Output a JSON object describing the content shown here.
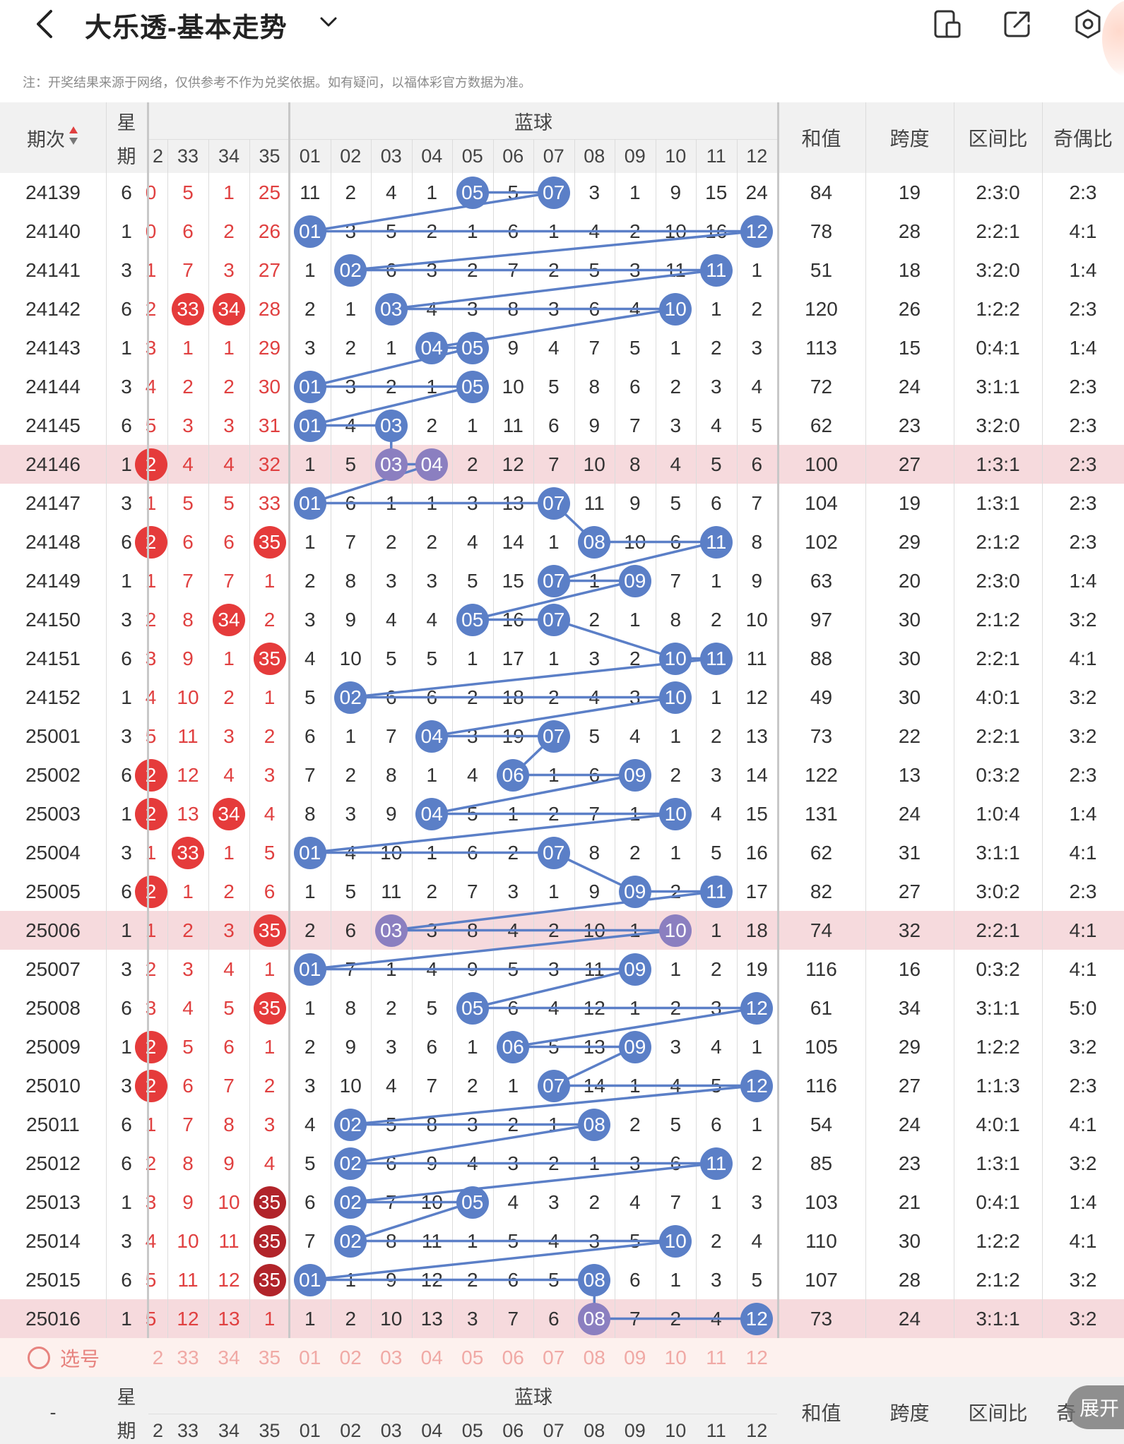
{
  "header": {
    "title": "大乐透-基本走势",
    "icons": [
      "back-icon",
      "chevron-down-icon",
      "device-icon",
      "share-icon",
      "settings-icon"
    ]
  },
  "note": "注：开奖结果来源于网络，仅供参考不作为兑奖依据。如有疑问，以福体彩官方数据为准。",
  "columns": {
    "period": "期次",
    "week": "星期",
    "blue_group": "蓝球",
    "front_visible": [
      "2",
      "33",
      "34",
      "35"
    ],
    "blue": [
      "01",
      "02",
      "03",
      "04",
      "05",
      "06",
      "07",
      "08",
      "09",
      "10",
      "11",
      "12"
    ],
    "sum": "和值",
    "span": "跨度",
    "zone": "区间比",
    "oddeven": "奇偶比"
  },
  "colors": {
    "blue_ball": "#5b7fc7",
    "purple_ball": "#8b7fc0",
    "red_ball": "#e53b3b",
    "dark_red_ball": "#b1242a",
    "highlight_row": "#f6dadd",
    "red_text": "#e04040"
  },
  "rows": [
    {
      "period": "24139",
      "week": "6",
      "front": [
        "0",
        "5",
        "1",
        "25"
      ],
      "front_balls": [],
      "blue": [
        "11",
        "2",
        "4",
        "1",
        "05",
        "5",
        "07",
        "3",
        "1",
        "9",
        "15",
        "24"
      ],
      "hits": [
        5,
        7
      ],
      "sum": "84",
      "span": "19",
      "zone": "2:3:0",
      "oe": "2:3"
    },
    {
      "period": "24140",
      "week": "1",
      "front": [
        "0",
        "6",
        "2",
        "26"
      ],
      "front_balls": [],
      "blue": [
        "01",
        "3",
        "5",
        "2",
        "1",
        "6",
        "1",
        "4",
        "2",
        "10",
        "16",
        "12"
      ],
      "hits": [
        1,
        12
      ],
      "sum": "78",
      "span": "28",
      "zone": "2:2:1",
      "oe": "4:1"
    },
    {
      "period": "24141",
      "week": "3",
      "front": [
        "1",
        "7",
        "3",
        "27"
      ],
      "front_balls": [],
      "blue": [
        "1",
        "02",
        "6",
        "3",
        "2",
        "7",
        "2",
        "5",
        "3",
        "11",
        "11",
        "1"
      ],
      "hits": [
        2,
        11
      ],
      "sum": "51",
      "span": "18",
      "zone": "3:2:0",
      "oe": "1:4"
    },
    {
      "period": "24142",
      "week": "6",
      "front": [
        "2",
        "33",
        "34",
        "28"
      ],
      "front_balls": [
        1,
        2
      ],
      "blue": [
        "2",
        "1",
        "03",
        "4",
        "3",
        "8",
        "3",
        "6",
        "4",
        "10",
        "1",
        "2"
      ],
      "hits": [
        3,
        10
      ],
      "sum": "120",
      "span": "26",
      "zone": "1:2:2",
      "oe": "2:3"
    },
    {
      "period": "24143",
      "week": "1",
      "front": [
        "3",
        "1",
        "1",
        "29"
      ],
      "front_balls": [],
      "blue": [
        "3",
        "2",
        "1",
        "04",
        "05",
        "9",
        "4",
        "7",
        "5",
        "1",
        "2",
        "3"
      ],
      "hits": [
        4,
        5
      ],
      "sum": "113",
      "span": "15",
      "zone": "0:4:1",
      "oe": "1:4"
    },
    {
      "period": "24144",
      "week": "3",
      "front": [
        "4",
        "2",
        "2",
        "30"
      ],
      "front_balls": [],
      "blue": [
        "01",
        "3",
        "2",
        "1",
        "05",
        "10",
        "5",
        "8",
        "6",
        "2",
        "3",
        "4"
      ],
      "hits": [
        1,
        5
      ],
      "sum": "72",
      "span": "24",
      "zone": "3:1:1",
      "oe": "2:3"
    },
    {
      "period": "24145",
      "week": "6",
      "front": [
        "5",
        "3",
        "3",
        "31"
      ],
      "front_balls": [],
      "blue": [
        "01",
        "4",
        "03",
        "2",
        "1",
        "11",
        "6",
        "9",
        "7",
        "3",
        "4",
        "5"
      ],
      "hits": [
        1,
        3
      ],
      "sum": "62",
      "span": "23",
      "zone": "3:2:0",
      "oe": "2:3"
    },
    {
      "period": "24146",
      "week": "1",
      "front": [
        "2",
        "4",
        "4",
        "32"
      ],
      "front_balls": [
        0
      ],
      "blue": [
        "1",
        "5",
        "03",
        "04",
        "2",
        "12",
        "7",
        "10",
        "8",
        "4",
        "5",
        "6"
      ],
      "hits": [
        3,
        4
      ],
      "sum": "100",
      "span": "27",
      "zone": "1:3:1",
      "oe": "2:3",
      "highlight": true
    },
    {
      "period": "24147",
      "week": "3",
      "front": [
        "1",
        "5",
        "5",
        "33"
      ],
      "front_balls": [],
      "blue": [
        "01",
        "6",
        "1",
        "1",
        "3",
        "13",
        "07",
        "11",
        "9",
        "5",
        "6",
        "7"
      ],
      "hits": [
        1,
        7
      ],
      "sum": "104",
      "span": "19",
      "zone": "1:3:1",
      "oe": "2:3"
    },
    {
      "period": "24148",
      "week": "6",
      "front": [
        "2",
        "6",
        "6",
        "35"
      ],
      "front_balls": [
        0,
        3
      ],
      "blue": [
        "1",
        "7",
        "2",
        "2",
        "4",
        "14",
        "1",
        "08",
        "10",
        "6",
        "11",
        "8"
      ],
      "hits": [
        8,
        11
      ],
      "sum": "102",
      "span": "29",
      "zone": "2:1:2",
      "oe": "2:3"
    },
    {
      "period": "24149",
      "week": "1",
      "front": [
        "1",
        "7",
        "7",
        "1"
      ],
      "front_balls": [],
      "blue": [
        "2",
        "8",
        "3",
        "3",
        "5",
        "15",
        "07",
        "1",
        "09",
        "7",
        "1",
        "9"
      ],
      "hits": [
        7,
        9
      ],
      "sum": "63",
      "span": "20",
      "zone": "2:3:0",
      "oe": "1:4"
    },
    {
      "period": "24150",
      "week": "3",
      "front": [
        "2",
        "8",
        "34",
        "2"
      ],
      "front_balls": [
        2
      ],
      "blue": [
        "3",
        "9",
        "4",
        "4",
        "05",
        "16",
        "07",
        "2",
        "1",
        "8",
        "2",
        "10"
      ],
      "hits": [
        5,
        7
      ],
      "sum": "97",
      "span": "30",
      "zone": "2:1:2",
      "oe": "3:2"
    },
    {
      "period": "24151",
      "week": "6",
      "front": [
        "3",
        "9",
        "1",
        "35"
      ],
      "front_balls": [
        3
      ],
      "blue": [
        "4",
        "10",
        "5",
        "5",
        "1",
        "17",
        "1",
        "3",
        "2",
        "10",
        "11",
        "11"
      ],
      "hits": [
        10,
        11
      ],
      "sum": "88",
      "span": "30",
      "zone": "2:2:1",
      "oe": "4:1"
    },
    {
      "period": "24152",
      "week": "1",
      "front": [
        "4",
        "10",
        "2",
        "1"
      ],
      "front_balls": [],
      "blue": [
        "5",
        "02",
        "6",
        "6",
        "2",
        "18",
        "2",
        "4",
        "3",
        "10",
        "1",
        "12"
      ],
      "hits": [
        2,
        10
      ],
      "sum": "49",
      "span": "30",
      "zone": "4:0:1",
      "oe": "3:2"
    },
    {
      "period": "25001",
      "week": "3",
      "front": [
        "5",
        "11",
        "3",
        "2"
      ],
      "front_balls": [],
      "blue": [
        "6",
        "1",
        "7",
        "04",
        "3",
        "19",
        "07",
        "5",
        "4",
        "1",
        "2",
        "13"
      ],
      "hits": [
        4,
        7
      ],
      "sum": "73",
      "span": "22",
      "zone": "2:2:1",
      "oe": "3:2"
    },
    {
      "period": "25002",
      "week": "6",
      "front": [
        "2",
        "12",
        "4",
        "3"
      ],
      "front_balls": [
        0
      ],
      "blue": [
        "7",
        "2",
        "8",
        "1",
        "4",
        "06",
        "1",
        "6",
        "09",
        "2",
        "3",
        "14"
      ],
      "hits": [
        6,
        9
      ],
      "sum": "122",
      "span": "13",
      "zone": "0:3:2",
      "oe": "2:3"
    },
    {
      "period": "25003",
      "week": "1",
      "front": [
        "2",
        "13",
        "34",
        "4"
      ],
      "front_balls": [
        0,
        2
      ],
      "blue": [
        "8",
        "3",
        "9",
        "04",
        "5",
        "1",
        "2",
        "7",
        "1",
        "10",
        "4",
        "15"
      ],
      "hits": [
        4,
        10
      ],
      "sum": "131",
      "span": "24",
      "zone": "1:0:4",
      "oe": "1:4"
    },
    {
      "period": "25004",
      "week": "3",
      "front": [
        "1",
        "33",
        "1",
        "5"
      ],
      "front_balls": [
        1
      ],
      "blue": [
        "01",
        "4",
        "10",
        "1",
        "6",
        "2",
        "07",
        "8",
        "2",
        "1",
        "5",
        "16"
      ],
      "hits": [
        1,
        7
      ],
      "sum": "62",
      "span": "31",
      "zone": "3:1:1",
      "oe": "4:1"
    },
    {
      "period": "25005",
      "week": "6",
      "front": [
        "2",
        "1",
        "2",
        "6"
      ],
      "front_balls": [
        0
      ],
      "blue": [
        "1",
        "5",
        "11",
        "2",
        "7",
        "3",
        "1",
        "9",
        "09",
        "2",
        "11",
        "17"
      ],
      "hits": [
        9,
        11
      ],
      "sum": "82",
      "span": "27",
      "zone": "3:0:2",
      "oe": "2:3"
    },
    {
      "period": "25006",
      "week": "1",
      "front": [
        "1",
        "2",
        "3",
        "35"
      ],
      "front_balls": [
        3
      ],
      "blue": [
        "2",
        "6",
        "03",
        "3",
        "8",
        "4",
        "2",
        "10",
        "1",
        "10",
        "1",
        "18"
      ],
      "hits": [
        3,
        10
      ],
      "sum": "74",
      "span": "32",
      "zone": "2:2:1",
      "oe": "4:1",
      "highlight": true
    },
    {
      "period": "25007",
      "week": "3",
      "front": [
        "2",
        "3",
        "4",
        "1"
      ],
      "front_balls": [],
      "blue": [
        "01",
        "7",
        "1",
        "4",
        "9",
        "5",
        "3",
        "11",
        "09",
        "1",
        "2",
        "19"
      ],
      "hits": [
        1,
        9
      ],
      "sum": "116",
      "span": "16",
      "zone": "0:3:2",
      "oe": "4:1"
    },
    {
      "period": "25008",
      "week": "6",
      "front": [
        "3",
        "4",
        "5",
        "35"
      ],
      "front_balls": [
        3
      ],
      "blue": [
        "1",
        "8",
        "2",
        "5",
        "05",
        "6",
        "4",
        "12",
        "1",
        "2",
        "3",
        "12"
      ],
      "hits": [
        5,
        12
      ],
      "sum": "61",
      "span": "34",
      "zone": "3:1:1",
      "oe": "5:0"
    },
    {
      "period": "25009",
      "week": "1",
      "front": [
        "2",
        "5",
        "6",
        "1"
      ],
      "front_balls": [
        0
      ],
      "blue": [
        "2",
        "9",
        "3",
        "6",
        "1",
        "06",
        "5",
        "13",
        "09",
        "3",
        "4",
        "1"
      ],
      "hits": [
        6,
        9
      ],
      "sum": "105",
      "span": "29",
      "zone": "1:2:2",
      "oe": "3:2"
    },
    {
      "period": "25010",
      "week": "3",
      "front": [
        "2",
        "6",
        "7",
        "2"
      ],
      "front_balls": [
        0
      ],
      "blue": [
        "3",
        "10",
        "4",
        "7",
        "2",
        "1",
        "07",
        "14",
        "1",
        "4",
        "5",
        "12"
      ],
      "hits": [
        7,
        12
      ],
      "sum": "116",
      "span": "27",
      "zone": "1:1:3",
      "oe": "2:3"
    },
    {
      "period": "25011",
      "week": "6",
      "front": [
        "1",
        "7",
        "8",
        "3"
      ],
      "front_balls": [],
      "blue": [
        "4",
        "02",
        "5",
        "8",
        "3",
        "2",
        "1",
        "08",
        "2",
        "5",
        "6",
        "1"
      ],
      "hits": [
        2,
        8
      ],
      "sum": "54",
      "span": "24",
      "zone": "4:0:1",
      "oe": "4:1"
    },
    {
      "period": "25012",
      "week": "6",
      "front": [
        "2",
        "8",
        "9",
        "4"
      ],
      "front_balls": [],
      "blue": [
        "5",
        "02",
        "6",
        "9",
        "4",
        "3",
        "2",
        "1",
        "3",
        "6",
        "11",
        "2"
      ],
      "hits": [
        2,
        11
      ],
      "sum": "85",
      "span": "23",
      "zone": "1:3:1",
      "oe": "3:2"
    },
    {
      "period": "25013",
      "week": "1",
      "front": [
        "3",
        "9",
        "10",
        "35"
      ],
      "front_balls": [
        3
      ],
      "blue": [
        "6",
        "02",
        "7",
        "10",
        "05",
        "4",
        "3",
        "2",
        "4",
        "7",
        "1",
        "3"
      ],
      "hits": [
        2,
        5
      ],
      "sum": "103",
      "span": "21",
      "zone": "0:4:1",
      "oe": "1:4"
    },
    {
      "period": "25014",
      "week": "3",
      "front": [
        "4",
        "10",
        "11",
        "35"
      ],
      "front_balls": [
        3
      ],
      "blue": [
        "7",
        "02",
        "8",
        "11",
        "1",
        "5",
        "4",
        "3",
        "5",
        "10",
        "2",
        "4"
      ],
      "hits": [
        2,
        10
      ],
      "sum": "110",
      "span": "30",
      "zone": "1:2:2",
      "oe": "4:1"
    },
    {
      "period": "25015",
      "week": "6",
      "front": [
        "5",
        "11",
        "12",
        "35"
      ],
      "front_balls": [
        3
      ],
      "blue": [
        "01",
        "1",
        "9",
        "12",
        "2",
        "6",
        "5",
        "08",
        "6",
        "1",
        "3",
        "5"
      ],
      "hits": [
        1,
        8
      ],
      "sum": "107",
      "span": "28",
      "zone": "2:1:2",
      "oe": "3:2"
    },
    {
      "period": "25016",
      "week": "1",
      "front": [
        "5",
        "12",
        "13",
        "1"
      ],
      "front_balls": [],
      "blue": [
        "1",
        "2",
        "10",
        "13",
        "3",
        "7",
        "6",
        "08",
        "7",
        "2",
        "4",
        "12"
      ],
      "hits": [
        8,
        12
      ],
      "sum": "73",
      "span": "24",
      "zone": "3:1:1",
      "oe": "3:2",
      "highlight": true
    }
  ],
  "select_row": {
    "label": "选号",
    "front": [
      "2",
      "33",
      "34",
      "35"
    ],
    "blue": [
      "01",
      "02",
      "03",
      "04",
      "05",
      "06",
      "07",
      "08",
      "09",
      "10",
      "11",
      "12"
    ]
  },
  "footer_header": {
    "period": "-",
    "week": "星期",
    "blue_group": "蓝球",
    "sum": "和值",
    "span": "跨度",
    "zone": "区间比",
    "oddeven": "奇"
  },
  "expand_label": "展开"
}
